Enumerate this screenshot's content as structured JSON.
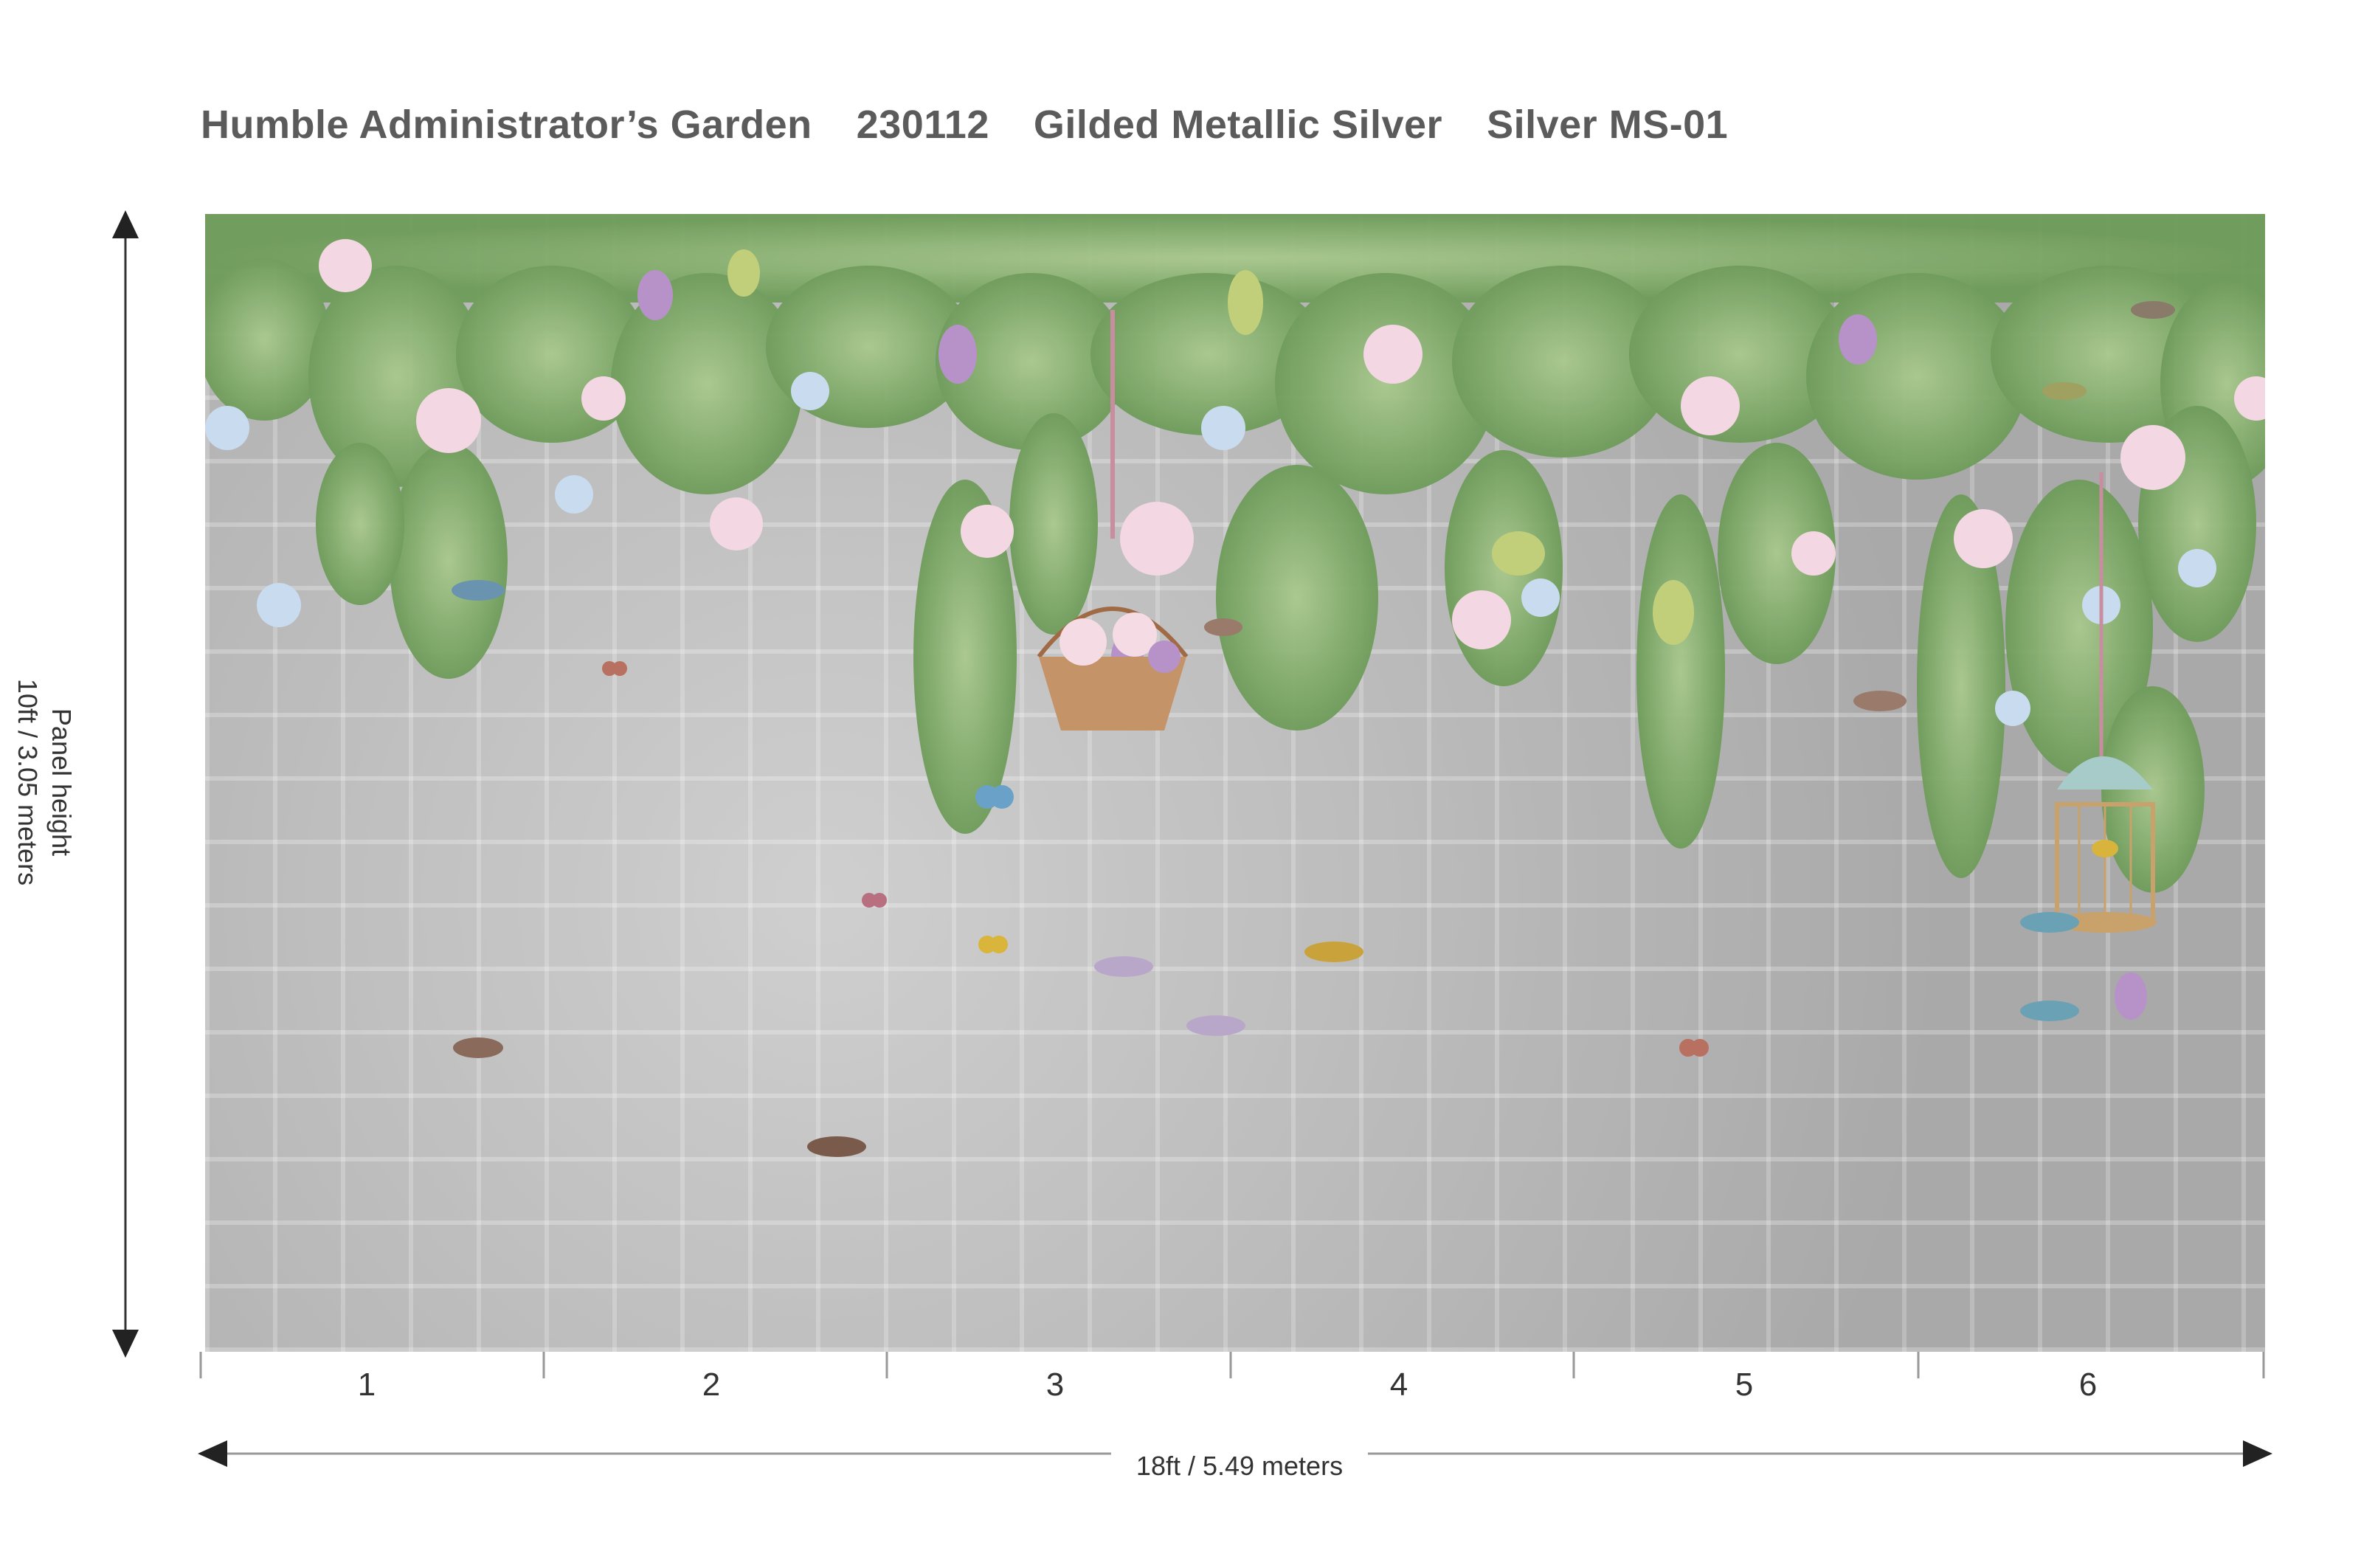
{
  "header": {
    "pattern_name": "Humble Administrator’s Garden",
    "pattern_code": "230112",
    "finish": "Gilded Metallic Silver",
    "colorway": "Silver MS-01"
  },
  "dimensions": {
    "height_label_line1": "Panel height",
    "height_label_line2": "10ft / 3.05 meters",
    "width_label": "18ft / 5.49 meters"
  },
  "panels": [
    "1",
    "2",
    "3",
    "4",
    "5",
    "6"
  ],
  "colors": {
    "background_silver": "#b9b9b9",
    "leaf_green": "#7fae6a",
    "text_gray": "#5b5b5b"
  }
}
